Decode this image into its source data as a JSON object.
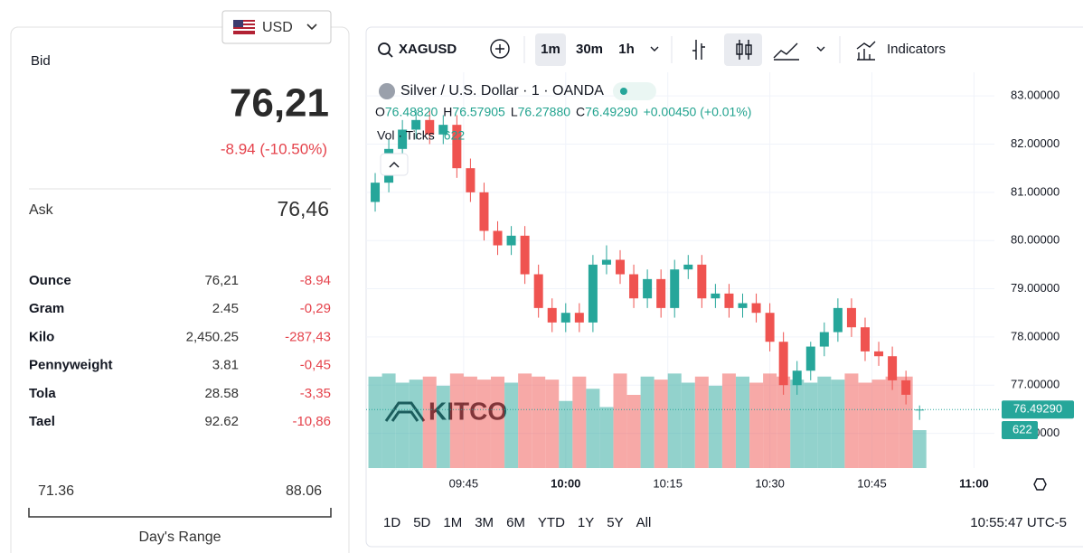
{
  "currency": "USD",
  "quote": {
    "bid_label": "Bid",
    "bid": "76,21",
    "change": "-8.94 (-10.50%)",
    "ask_label": "Ask",
    "ask": "76,46"
  },
  "table": {
    "rows": [
      [
        "Ounce",
        "76,21",
        "-8.94"
      ],
      [
        "Gram",
        "2.45",
        "-0,29"
      ],
      [
        "Kilo",
        "2,450.25",
        "-287,43"
      ],
      [
        "Pennyweight",
        "3.81",
        "-0,45"
      ],
      [
        "Tola",
        "28.58",
        "-3,35"
      ],
      [
        "Tael",
        "92.62",
        "-10,86"
      ]
    ]
  },
  "range": {
    "low": "71.36",
    "high": "88.06",
    "label": "Day's Range"
  },
  "toolbar": {
    "symbol": "XAGUSD",
    "intervals": [
      "1m",
      "30m",
      "1h"
    ],
    "indicators": "Indicators",
    "periods": [
      "1D",
      "5D",
      "1M",
      "3M",
      "6M",
      "YTD",
      "1Y",
      "5Y",
      "All"
    ],
    "clock": "10:55:47 UTC-5"
  },
  "chart_data": {
    "type": "candlestick",
    "title": "Silver / U.S. Dollar · 1 · OANDA",
    "legend_keys": [
      "O",
      "H",
      "L",
      "C"
    ],
    "last_labels": {
      "open": "76.48820",
      "high": "76.57905",
      "low": "76.27880",
      "close": "76.49290"
    },
    "change": "+0.00450 (+0.01%)",
    "volume_label": "Vol · Ticks",
    "watermark": "KITCO",
    "up_color": "#26a69a",
    "down_color": "#ef5350",
    "x": [
      "09:32",
      "09:34",
      "09:36",
      "09:38",
      "09:40",
      "09:42",
      "09:44",
      "09:46",
      "09:48",
      "09:50",
      "09:52",
      "09:54",
      "09:56",
      "09:58",
      "10:00",
      "10:02",
      "10:04",
      "10:06",
      "10:08",
      "10:10",
      "10:12",
      "10:14",
      "10:16",
      "10:18",
      "10:20",
      "10:22",
      "10:24",
      "10:26",
      "10:28",
      "10:30",
      "10:32",
      "10:34",
      "10:36",
      "10:38",
      "10:40",
      "10:42",
      "10:44",
      "10:46",
      "10:48",
      "10:50",
      "10:52"
    ],
    "open": [
      80.8,
      81.2,
      81.9,
      82.3,
      82.5,
      82.2,
      82.4,
      81.5,
      81.0,
      80.2,
      79.9,
      80.1,
      79.3,
      78.6,
      78.3,
      78.5,
      78.3,
      79.5,
      79.6,
      79.3,
      78.8,
      79.2,
      78.6,
      79.4,
      79.5,
      78.8,
      78.9,
      78.6,
      78.7,
      78.5,
      77.9,
      77.0,
      77.3,
      77.8,
      78.1,
      78.6,
      78.2,
      77.7,
      77.6,
      77.1,
      76.4882
    ],
    "high": [
      81.4,
      82.1,
      82.5,
      82.7,
      82.7,
      82.6,
      82.6,
      81.7,
      81.2,
      80.4,
      80.3,
      80.3,
      79.5,
      78.8,
      78.7,
      78.7,
      79.7,
      79.9,
      79.8,
      79.5,
      79.4,
      79.4,
      79.6,
      79.7,
      79.7,
      79.1,
      79.1,
      78.9,
      78.9,
      78.7,
      78.1,
      77.5,
      77.9,
      78.3,
      78.8,
      78.8,
      78.4,
      77.9,
      77.8,
      77.3,
      76.57905
    ],
    "low": [
      80.6,
      81.0,
      81.7,
      82.1,
      82.0,
      82.0,
      81.3,
      80.8,
      80.0,
      79.7,
      79.7,
      79.1,
      78.4,
      78.1,
      78.1,
      78.1,
      78.1,
      79.3,
      79.1,
      78.6,
      78.6,
      78.4,
      78.4,
      79.2,
      78.6,
      78.6,
      78.4,
      78.4,
      78.3,
      77.7,
      76.8,
      76.8,
      77.1,
      77.6,
      77.9,
      78.0,
      77.5,
      77.4,
      76.9,
      76.6,
      76.2788
    ],
    "close": [
      81.2,
      81.9,
      82.3,
      82.5,
      82.2,
      82.4,
      81.5,
      81.0,
      80.2,
      79.9,
      80.1,
      79.3,
      78.6,
      78.3,
      78.5,
      78.3,
      79.5,
      79.6,
      79.3,
      78.8,
      79.2,
      78.6,
      79.4,
      79.5,
      78.8,
      78.9,
      78.6,
      78.7,
      78.5,
      77.9,
      77.0,
      77.3,
      77.8,
      78.1,
      78.6,
      78.2,
      77.7,
      77.6,
      77.1,
      76.8,
      76.4929
    ],
    "volume": [
      1500,
      1550,
      1400,
      1450,
      1500,
      1350,
      1550,
      1500,
      1450,
      1500,
      1400,
      1550,
      1500,
      1450,
      1100,
      1500,
      1300,
      1000,
      1550,
      1200,
      1500,
      1450,
      1550,
      1400,
      1500,
      1350,
      1550,
      1500,
      1400,
      1550,
      1500,
      1450,
      1400,
      1500,
      1450,
      1550,
      1400,
      1450,
      1500,
      1500,
      622
    ],
    "xlim": [
      "09:31",
      "11:03"
    ],
    "xticks": [
      "09:45",
      "10:00",
      "10:15",
      "10:30",
      "10:45",
      "11:00"
    ],
    "ylim": [
      75.28,
      83.49
    ],
    "yticks": [
      {
        "value": 76,
        "label": "76.00000"
      },
      {
        "value": 77,
        "label": "77.00000"
      },
      {
        "value": 78,
        "label": "78.00000"
      },
      {
        "value": 79,
        "label": "79.00000"
      },
      {
        "value": 80,
        "label": "80.00000"
      },
      {
        "value": 81,
        "label": "81.00000"
      },
      {
        "value": 82,
        "label": "82.00000"
      },
      {
        "value": 83,
        "label": "83.00000"
      }
    ],
    "grid": true
  }
}
